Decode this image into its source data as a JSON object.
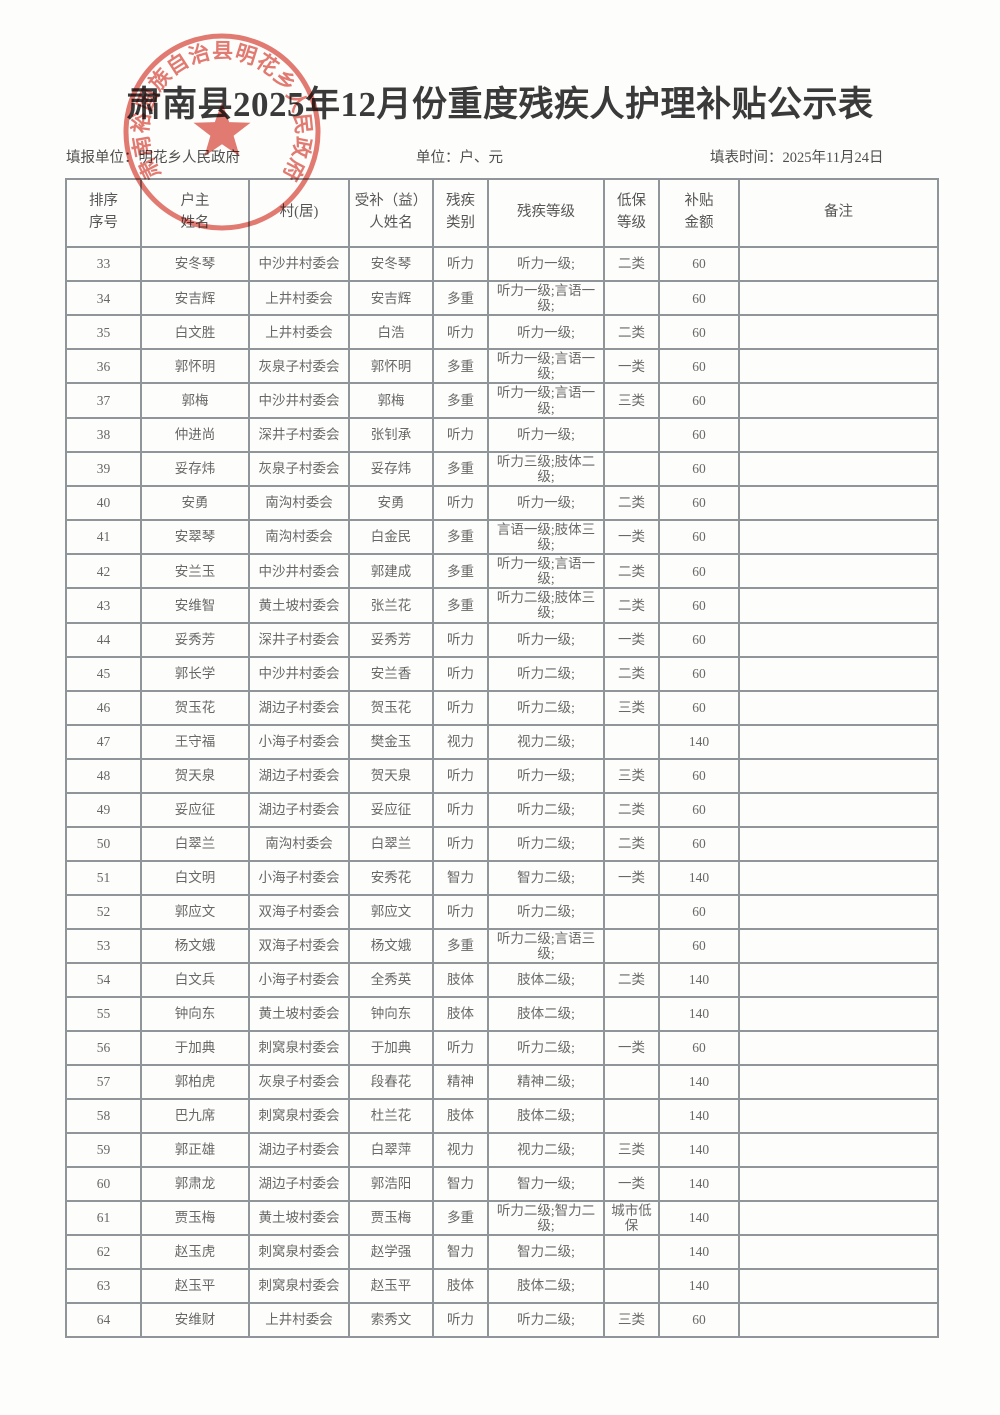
{
  "page": {
    "title": "肃南县2025年12月份重度残疾人护理补贴公示表",
    "filing_unit_label": "填报单位：明花乡人民政府",
    "unit_label": "单位：户、元",
    "fill_date_label": "填表时间：2025年11月24日"
  },
  "stamp": {
    "ring_text": "肃南裕固族自治县明花乡人民政府",
    "icon": "red-star",
    "color": "#d9473d"
  },
  "table": {
    "headers": [
      "排序\n序号",
      "户主\n姓名",
      "村(居)",
      "受补（益）\n人姓名",
      "残疾\n类别",
      "残疾等级",
      "低保\n等级",
      "补贴\n金额",
      "备注"
    ],
    "rows": [
      [
        "33",
        "安冬琴",
        "中沙井村委会",
        "安冬琴",
        "听力",
        "听力一级;",
        "二类",
        "60",
        ""
      ],
      [
        "34",
        "安吉辉",
        "上井村委会",
        "安吉辉",
        "多重",
        "听力一级;言语一级;",
        "",
        "60",
        ""
      ],
      [
        "35",
        "白文胜",
        "上井村委会",
        "白浩",
        "听力",
        "听力一级;",
        "二类",
        "60",
        ""
      ],
      [
        "36",
        "郭怀明",
        "灰泉子村委会",
        "郭怀明",
        "多重",
        "听力一级;言语一级;",
        "一类",
        "60",
        ""
      ],
      [
        "37",
        "郭梅",
        "中沙井村委会",
        "郭梅",
        "多重",
        "听力一级;言语一级;",
        "三类",
        "60",
        ""
      ],
      [
        "38",
        "仲进尚",
        "深井子村委会",
        "张钊承",
        "听力",
        "听力一级;",
        "",
        "60",
        ""
      ],
      [
        "39",
        "妥存炜",
        "灰泉子村委会",
        "妥存炜",
        "多重",
        "听力三级;肢体二级;",
        "",
        "60",
        ""
      ],
      [
        "40",
        "安勇",
        "南沟村委会",
        "安勇",
        "听力",
        "听力一级;",
        "二类",
        "60",
        ""
      ],
      [
        "41",
        "安翠琴",
        "南沟村委会",
        "白金民",
        "多重",
        "言语一级;肢体三级;",
        "一类",
        "60",
        ""
      ],
      [
        "42",
        "安兰玉",
        "中沙井村委会",
        "郭建成",
        "多重",
        "听力一级;言语一级;",
        "二类",
        "60",
        ""
      ],
      [
        "43",
        "安维智",
        "黄土坡村委会",
        "张兰花",
        "多重",
        "听力二级;肢体三级;",
        "二类",
        "60",
        ""
      ],
      [
        "44",
        "妥秀芳",
        "深井子村委会",
        "妥秀芳",
        "听力",
        "听力一级;",
        "一类",
        "60",
        ""
      ],
      [
        "45",
        "郭长学",
        "中沙井村委会",
        "安兰香",
        "听力",
        "听力二级;",
        "二类",
        "60",
        ""
      ],
      [
        "46",
        "贺玉花",
        "湖边子村委会",
        "贺玉花",
        "听力",
        "听力二级;",
        "三类",
        "60",
        ""
      ],
      [
        "47",
        "王守福",
        "小海子村委会",
        "樊金玉",
        "视力",
        "视力二级;",
        "",
        "140",
        ""
      ],
      [
        "48",
        "贺天泉",
        "湖边子村委会",
        "贺天泉",
        "听力",
        "听力一级;",
        "三类",
        "60",
        ""
      ],
      [
        "49",
        "妥应征",
        "湖边子村委会",
        "妥应征",
        "听力",
        "听力二级;",
        "二类",
        "60",
        ""
      ],
      [
        "50",
        "白翠兰",
        "南沟村委会",
        "白翠兰",
        "听力",
        "听力二级;",
        "二类",
        "60",
        ""
      ],
      [
        "51",
        "白文明",
        "小海子村委会",
        "安秀花",
        "智力",
        "智力二级;",
        "一类",
        "140",
        ""
      ],
      [
        "52",
        "郭应文",
        "双海子村委会",
        "郭应文",
        "听力",
        "听力二级;",
        "",
        "60",
        ""
      ],
      [
        "53",
        "杨文娥",
        "双海子村委会",
        "杨文娥",
        "多重",
        "听力二级;言语三级;",
        "",
        "60",
        ""
      ],
      [
        "54",
        "白文兵",
        "小海子村委会",
        "全秀英",
        "肢体",
        "肢体二级;",
        "二类",
        "140",
        ""
      ],
      [
        "55",
        "钟向东",
        "黄土坡村委会",
        "钟向东",
        "肢体",
        "肢体二级;",
        "",
        "140",
        ""
      ],
      [
        "56",
        "于加典",
        "刺窝泉村委会",
        "于加典",
        "听力",
        "听力二级;",
        "一类",
        "60",
        ""
      ],
      [
        "57",
        "郭柏虎",
        "灰泉子村委会",
        "段春花",
        "精神",
        "精神二级;",
        "",
        "140",
        ""
      ],
      [
        "58",
        "巴九席",
        "刺窝泉村委会",
        "杜兰花",
        "肢体",
        "肢体二级;",
        "",
        "140",
        ""
      ],
      [
        "59",
        "郭正雄",
        "湖边子村委会",
        "白翠萍",
        "视力",
        "视力二级;",
        "三类",
        "140",
        ""
      ],
      [
        "60",
        "郭肃龙",
        "湖边子村委会",
        "郭浩阳",
        "智力",
        "智力一级;",
        "一类",
        "140",
        ""
      ],
      [
        "61",
        "贾玉梅",
        "黄土坡村委会",
        "贾玉梅",
        "多重",
        "听力二级;智力二级;",
        "城市低保",
        "140",
        ""
      ],
      [
        "62",
        "赵玉虎",
        "刺窝泉村委会",
        "赵学强",
        "智力",
        "智力二级;",
        "",
        "140",
        ""
      ],
      [
        "63",
        "赵玉平",
        "刺窝泉村委会",
        "赵玉平",
        "肢体",
        "肢体二级;",
        "",
        "140",
        ""
      ],
      [
        "64",
        "安维财",
        "上井村委会",
        "索秀文",
        "听力",
        "听力二级;",
        "三类",
        "60",
        ""
      ]
    ],
    "column_keys": [
      "seq",
      "household-name",
      "village",
      "beneficiary-name",
      "disability-type",
      "disability-grade",
      "subsistence-level",
      "subsidy-amount",
      "remark"
    ]
  }
}
